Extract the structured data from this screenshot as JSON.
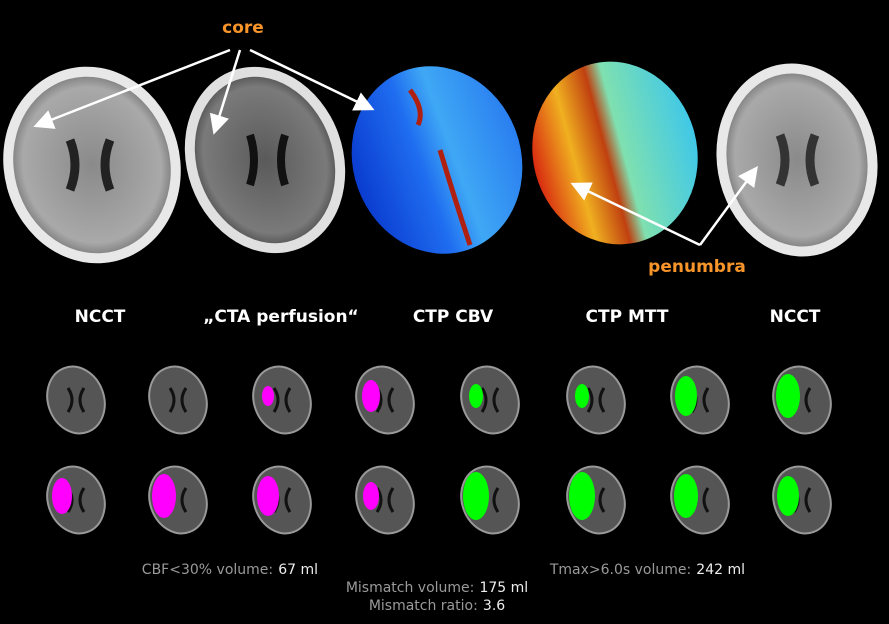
{
  "annotations": {
    "core": "core",
    "penumbra": "penumbra"
  },
  "labels": [
    "NCCT",
    "„CTA perfusion“",
    "CTP CBV",
    "CTP MTT",
    "NCCT"
  ],
  "stats": {
    "cbf": {
      "label": "CBF<30% volume:",
      "value": "67 ml"
    },
    "tmax": {
      "label": "Tmax>6.0s volume:",
      "value": "242 ml"
    },
    "mismatch_volume": {
      "label": "Mismatch volume:",
      "value": "175 ml"
    },
    "mismatch_ratio": {
      "label": "Mismatch ratio:",
      "value": "3.6"
    }
  }
}
